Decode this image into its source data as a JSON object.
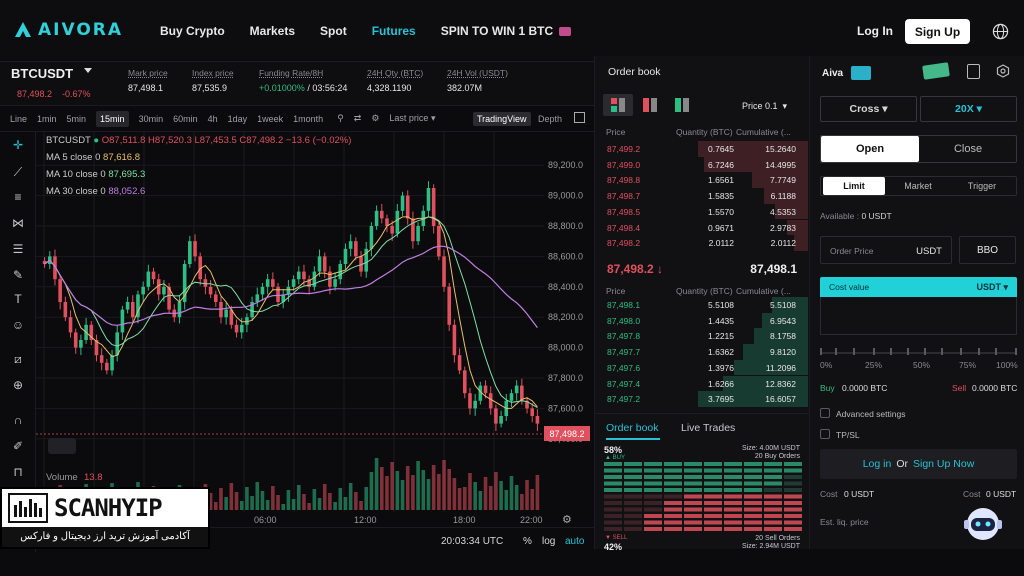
{
  "nav": {
    "logo": "AIVORA",
    "links": [
      "Buy Crypto",
      "Markets",
      "Spot",
      "Futures",
      "SPIN TO WIN 1 BTC"
    ],
    "active": "Futures",
    "login": "Log In",
    "signup": "Sign Up"
  },
  "ticker": {
    "symbol": "BTCUSDT",
    "price": "87,498.2",
    "change": "-0.67%",
    "stats": [
      {
        "label": "Mark price",
        "value": "87,498.1"
      },
      {
        "label": "Index price",
        "value": "87,535.9"
      },
      {
        "label": "Funding Rate/8H",
        "value_green": "+0.01000%",
        "value": "/ 03:56:24"
      },
      {
        "label": "24H Qty (BTC)",
        "value": "4,328.1190"
      },
      {
        "label": "24H Vol (USDT)",
        "value": "382.07M"
      }
    ]
  },
  "toolbar": {
    "timeframes": [
      "Line",
      "1min",
      "5min",
      "15min",
      "30min",
      "60min",
      "4h",
      "1day",
      "1week",
      "1month"
    ],
    "selected": "15min",
    "last_price": "Last price",
    "tradingview": "TradingView",
    "depth": "Depth"
  },
  "chart": {
    "legend_symbol": "BTCUSDT",
    "ohlc": "O87,511.8 H87,520.3 L87,453.5 C87,498.2 −13.6 (−0.02%)",
    "ma": [
      {
        "label": "MA 5 close 0",
        "value": "87,616.8",
        "color": "#e8c06a"
      },
      {
        "label": "MA 10 close 0",
        "value": "87,695.3",
        "color": "#7fe0a8"
      },
      {
        "label": "MA 30 close 0",
        "value": "88,052.6",
        "color": "#c07fe0"
      }
    ],
    "volume_label": "Volume",
    "volume_value": "13.8",
    "price_axis": [
      "89,200.0",
      "89,000.0",
      "88,800.0",
      "88,600.0",
      "88,400.0",
      "88,200.0",
      "88,000.0",
      "87,800.0",
      "87,600.0",
      "87,400.0"
    ],
    "current_price_tag": "87,498.2",
    "time_axis": [
      "06:00",
      "12:00",
      "18:00",
      "22:00"
    ],
    "clock": "20:03:34 UTC",
    "pct": "%",
    "log": "log",
    "auto": "auto"
  },
  "chart_data": {
    "type": "candlestick",
    "ylim": [
      87300,
      89300
    ],
    "closes": [
      88550,
      88600,
      88450,
      88300,
      88200,
      88100,
      88000,
      88050,
      88150,
      88050,
      87950,
      87900,
      87850,
      87950,
      88100,
      88250,
      88300,
      88200,
      88350,
      88400,
      88500,
      88450,
      88350,
      88400,
      88250,
      88200,
      88300,
      88550,
      88700,
      88600,
      88450,
      88400,
      88350,
      88300,
      88200,
      88250,
      88150,
      88100,
      88150,
      88200,
      88300,
      88350,
      88400,
      88450,
      88400,
      88300,
      88350,
      88400,
      88450,
      88500,
      88450,
      88400,
      88500,
      88600,
      88500,
      88400,
      88450,
      88550,
      88650,
      88700,
      88600,
      88500,
      88650,
      88800,
      88900,
      88850,
      88800,
      88750,
      88900,
      89000,
      88850,
      88700,
      88800,
      88900,
      89050,
      88800,
      88600,
      88400,
      88150,
      87950,
      87850,
      87700,
      87600,
      87650,
      87750,
      87700,
      87600,
      87500,
      87550,
      87650,
      87700,
      87750,
      87650,
      87600,
      87550,
      87500
    ]
  },
  "orderbook": {
    "title": "Order book",
    "precision": "Price 0.1",
    "headers": [
      "Price",
      "Quantity (BTC)",
      "Cumulative (..."
    ],
    "asks": [
      [
        "87,499.2",
        "0.7645",
        "15.2640"
      ],
      [
        "87,499.0",
        "6.7246",
        "14.4995"
      ],
      [
        "87,498.8",
        "1.6561",
        "7.7749"
      ],
      [
        "87,498.7",
        "1.5835",
        "6.1188"
      ],
      [
        "87,498.5",
        "1.5570",
        "4.5353"
      ],
      [
        "87,498.4",
        "0.9671",
        "2.9783"
      ],
      [
        "87,498.2",
        "2.0112",
        "2.0112"
      ]
    ],
    "mid_price": "87,498.2 ↓",
    "mid_value": "87,498.1",
    "bids": [
      [
        "87,498.1",
        "5.5108",
        "5.5108"
      ],
      [
        "87,498.0",
        "1.4435",
        "6.9543"
      ],
      [
        "87,497.8",
        "1.2215",
        "8.1758"
      ],
      [
        "87,497.7",
        "1.6362",
        "9.8120"
      ],
      [
        "87,497.6",
        "1.3976",
        "11.2096"
      ],
      [
        "87,497.4",
        "1.6266",
        "12.8362"
      ],
      [
        "87,497.2",
        "3.7695",
        "16.6057"
      ]
    ]
  },
  "trades": {
    "tab_orderbook": "Order book",
    "tab_live": "Live Trades",
    "buy_pct": "58%",
    "buy_label": "▲ BUY",
    "buy_size": "Size: 4.00M USDT",
    "buy_orders": "20 Buy Orders",
    "sell_pct": "42%",
    "sell_label": "▼ SELL",
    "sell_size": "Size: 2.94M USDT",
    "sell_orders": "20 Sell Orders"
  },
  "panel": {
    "aiva": "Aiva",
    "margin": "Cross",
    "leverage": "20X",
    "open": "Open",
    "close": "Close",
    "types": [
      "Limit",
      "Market",
      "Trigger"
    ],
    "available_label": "Available :",
    "available_value": "0 USDT",
    "order_price": "Order Price",
    "order_unit": "USDT",
    "bbo": "BBO",
    "cost_value": "Cost value",
    "cost_unit": "USDT",
    "slider_labels": [
      "0%",
      "25%",
      "50%",
      "75%",
      "100%"
    ],
    "buy_label": "Buy",
    "buy_value": "0.0000 BTC",
    "sell_label": "Sell",
    "sell_value": "0.0000 BTC",
    "advanced": "Advanced settings",
    "tpsl": "TP/SL",
    "login": "Log in",
    "or": "Or",
    "signup_now": "Sign Up Now",
    "cost_label": "Cost",
    "cost_left": "0 USDT",
    "cost_right": "0 USDT",
    "liq": "Est. liq. price"
  },
  "watermark": {
    "title": "SCANHYIP",
    "subtitle": "آکادمی آموزش ترید ارز دیجیتال و فارکس"
  },
  "colors": {
    "accent": "#27c2d6",
    "up": "#2dbd85",
    "down": "#e0505e"
  }
}
